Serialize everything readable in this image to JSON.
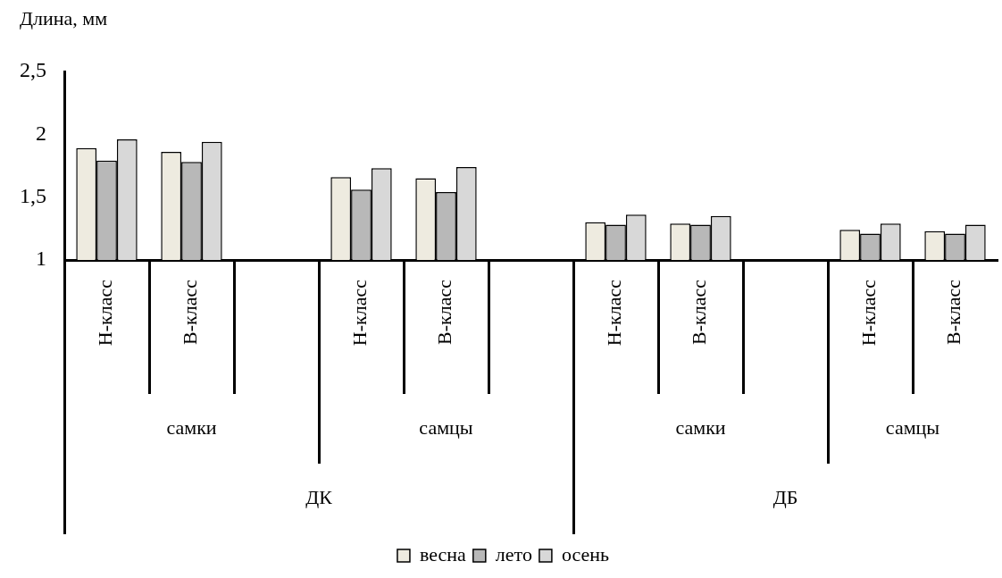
{
  "chart_data": {
    "type": "bar",
    "ylabel": "Длина, мм",
    "categories": [
      "Н-класс",
      "В-класс",
      null,
      "Н-класс",
      "В-класс",
      null,
      "Н-класс",
      "В-класс",
      null,
      "Н-класс",
      "В-класс"
    ],
    "series": [
      {
        "name": "весна",
        "color": "#eeebe0",
        "values": [
          1.89,
          1.86,
          null,
          1.66,
          1.65,
          null,
          1.3,
          1.29,
          null,
          1.24,
          1.23
        ]
      },
      {
        "name": "лето",
        "color": "#b8b8b8",
        "values": [
          1.79,
          1.78,
          null,
          1.56,
          1.54,
          null,
          1.28,
          1.28,
          null,
          1.21,
          1.21
        ]
      },
      {
        "name": "осень",
        "color": "#d8d8d8",
        "values": [
          1.96,
          1.94,
          null,
          1.73,
          1.74,
          null,
          1.36,
          1.35,
          null,
          1.29,
          1.28
        ]
      }
    ],
    "ylim": [
      1,
      2.5
    ],
    "yticks": [
      1,
      {
        "value": 1.5,
        "label": "1,5"
      },
      2,
      {
        "value": 2.5,
        "label": "2,5"
      }
    ],
    "annotations": [
      "самки",
      "самцы",
      "самки",
      "самцы",
      "ДК",
      "ДБ"
    ],
    "grid": false,
    "legend": "bottom"
  }
}
